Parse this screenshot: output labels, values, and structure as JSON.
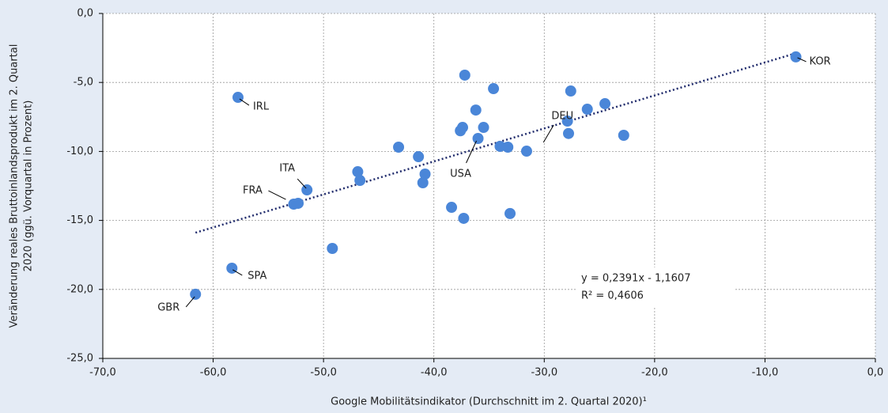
{
  "chart_data": {
    "type": "scatter",
    "x_label": "Google Mobilitätsindikator (Durchschnitt im 2. Quartal 2020)¹",
    "y_label": [
      "Veränderung reales Bruttoinlandsprodukt im 2. Quartal",
      "2020 (ggü. Vorquartal in Prozent)"
    ],
    "xlim": [
      -70,
      0
    ],
    "ylim": [
      -25,
      0
    ],
    "xticks": [
      {
        "value": -70,
        "label": "-70,0"
      },
      {
        "value": -60,
        "label": "-60,0"
      },
      {
        "value": -50,
        "label": "-50,0"
      },
      {
        "value": -40,
        "label": "-40,0"
      },
      {
        "value": -30,
        "label": "-30,0"
      },
      {
        "value": -20,
        "label": "-20,0"
      },
      {
        "value": -10,
        "label": "-10,0"
      },
      {
        "value": 0,
        "label": "0,0"
      }
    ],
    "yticks": [
      {
        "value": 0,
        "label": "0,0"
      },
      {
        "value": -5,
        "label": "-5,0"
      },
      {
        "value": -10,
        "label": "-10,0"
      },
      {
        "value": -15,
        "label": "-15,0"
      },
      {
        "value": -20,
        "label": "-20,0"
      },
      {
        "value": -25,
        "label": "-25,0"
      }
    ],
    "grid": true,
    "color": "#4a86d8",
    "x": [
      -7.2,
      -57.75,
      -37.2,
      -34.6,
      -27.6,
      -36.2,
      -26.1,
      -24.5,
      -37.6,
      -37.4,
      -35.5,
      -27.9,
      -27.8,
      -22.8,
      -36.0,
      -43.2,
      -34.0,
      -33.3,
      -31.6,
      -41.4,
      -46.9,
      -46.7,
      -40.8,
      -41.0,
      -51.5,
      -52.7,
      -52.3,
      -38.4,
      -37.3,
      -33.1,
      -49.2,
      -58.3,
      -61.6
    ],
    "y": [
      -3.15,
      -6.08,
      -4.47,
      -5.45,
      -5.62,
      -7.0,
      -6.94,
      -6.54,
      -8.5,
      -8.26,
      -8.26,
      -7.8,
      -8.7,
      -8.83,
      -9.06,
      -9.69,
      -9.63,
      -9.69,
      -9.98,
      -10.38,
      -11.47,
      -12.1,
      -11.64,
      -12.27,
      -12.79,
      -13.82,
      -13.76,
      -14.05,
      -14.85,
      -14.5,
      -17.03,
      -18.46,
      -20.35
    ],
    "labels": [
      "KOR",
      "IRL",
      null,
      null,
      null,
      null,
      null,
      null,
      null,
      null,
      null,
      null,
      null,
      null,
      "USA",
      null,
      null,
      "DEU",
      null,
      null,
      null,
      null,
      null,
      null,
      "ITA",
      "FRA",
      null,
      null,
      null,
      null,
      null,
      "SPA",
      "GBR"
    ],
    "trendline": {
      "slope": 0.2391,
      "intercept": -1.1607,
      "equation": "y = 0,2391x - 1,1607",
      "r2": "R² = 0,4606"
    }
  }
}
